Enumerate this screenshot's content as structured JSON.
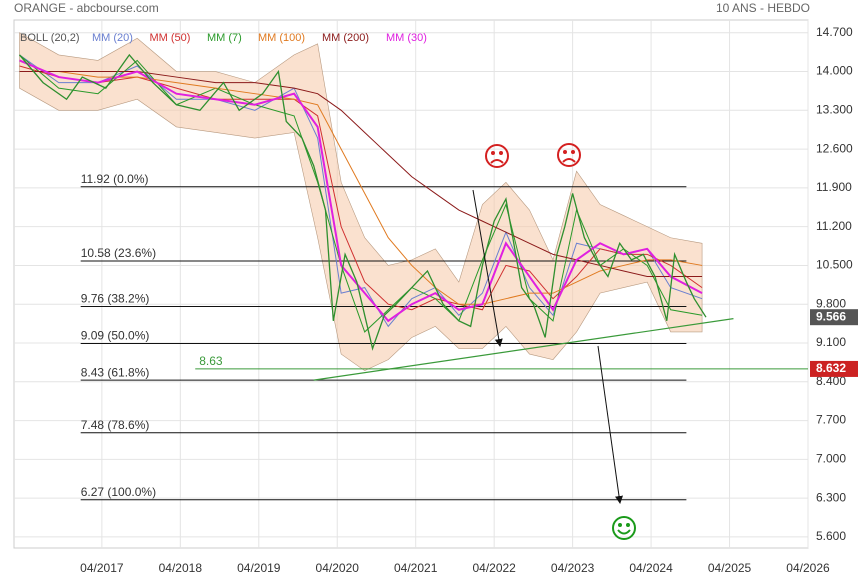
{
  "chart_data": {
    "type": "line",
    "header_left": "ORANGE - abcbourse.com",
    "header_right": "10 ANS - HEBDO",
    "xlim": [
      2016.13,
      2026.25
    ],
    "ylim": [
      5.4,
      14.93
    ],
    "xticks": [
      {
        "value": 2017.25,
        "label": "04/2017"
      },
      {
        "value": 2018.25,
        "label": "04/2018"
      },
      {
        "value": 2019.25,
        "label": "04/2019"
      },
      {
        "value": 2020.25,
        "label": "04/2020"
      },
      {
        "value": 2021.25,
        "label": "04/2021"
      },
      {
        "value": 2022.25,
        "label": "04/2022"
      },
      {
        "value": 2023.25,
        "label": "04/2023"
      },
      {
        "value": 2024.25,
        "label": "04/2024"
      },
      {
        "value": 2025.25,
        "label": "04/2025"
      },
      {
        "value": 2026.25,
        "label": "04/2026"
      }
    ],
    "yticks": [
      {
        "value": 14.7,
        "label": "14.700"
      },
      {
        "value": 14,
        "label": "14.000"
      },
      {
        "value": 13.3,
        "label": "13.300"
      },
      {
        "value": 12.6,
        "label": "12.600"
      },
      {
        "value": 11.9,
        "label": "11.900"
      },
      {
        "value": 11.2,
        "label": "11.200"
      },
      {
        "value": 10.5,
        "label": "10.500"
      },
      {
        "value": 9.8,
        "label": "9.800"
      },
      {
        "value": 9.1,
        "label": "9.100"
      },
      {
        "value": 8.4,
        "label": "8.400"
      },
      {
        "value": 7.7,
        "label": "7.700"
      },
      {
        "value": 7,
        "label": "7.000"
      },
      {
        "value": 6.3,
        "label": "6.300"
      },
      {
        "value": 5.6,
        "label": "5.600"
      }
    ],
    "grid": true,
    "price": {
      "color": "#2f8f2f",
      "x": [
        2016.2,
        2016.5,
        2016.8,
        2017.0,
        2017.3,
        2017.6,
        2017.9,
        2018.2,
        2018.5,
        2018.8,
        2019.0,
        2019.3,
        2019.5,
        2019.6,
        2019.8,
        2019.95,
        2020.1,
        2020.2,
        2020.35,
        2020.5,
        2020.7,
        2020.85,
        2021.0,
        2021.2,
        2021.4,
        2021.6,
        2021.8,
        2021.95,
        2022.1,
        2022.25,
        2022.4,
        2022.6,
        2022.75,
        2022.9,
        2023.05,
        2023.15,
        2023.25,
        2023.4,
        2023.55,
        2023.7,
        2023.85,
        2024.0,
        2024.15,
        2024.3,
        2024.45,
        2024.55,
        2024.7,
        2024.8,
        2024.95
      ],
      "values": [
        14.3,
        13.8,
        13.5,
        13.9,
        13.7,
        14.3,
        13.8,
        13.4,
        13.3,
        13.8,
        13.3,
        13.6,
        14.0,
        13.1,
        12.8,
        12.3,
        11.5,
        9.5,
        10.7,
        10.2,
        9.0,
        9.6,
        9.8,
        10.1,
        10.4,
        9.8,
        9.5,
        9.4,
        10.5,
        11.3,
        11.7,
        10.1,
        9.8,
        9.2,
        10.7,
        11.2,
        11.8,
        11.0,
        10.6,
        10.3,
        10.9,
        10.6,
        10.7,
        10.3,
        9.5,
        10.7,
        10.2,
        9.9,
        9.566
      ]
    },
    "ma_x": [
      2016.2,
      2016.7,
      2017.2,
      2017.7,
      2018.2,
      2018.7,
      2019.2,
      2019.7,
      2020.0,
      2020.3,
      2020.6,
      2020.9,
      2021.2,
      2021.5,
      2021.8,
      2022.1,
      2022.4,
      2022.7,
      2023.0,
      2023.3,
      2023.6,
      2023.9,
      2024.2,
      2024.5,
      2024.9
    ],
    "band": {
      "name": "BOLL (20,2)",
      "color": "#f5c9a8",
      "upper": [
        14.7,
        14.3,
        14.2,
        14.6,
        14.0,
        14.0,
        13.8,
        14.3,
        14.5,
        12.0,
        11.0,
        10.5,
        10.6,
        10.8,
        10.2,
        11.6,
        12.0,
        11.5,
        10.6,
        12.2,
        11.6,
        11.4,
        11.2,
        11.0,
        10.9
      ],
      "lower": [
        13.7,
        13.3,
        13.3,
        13.5,
        13.0,
        12.9,
        12.8,
        12.9,
        11.0,
        8.9,
        8.6,
        8.8,
        9.2,
        9.4,
        9.0,
        9.0,
        9.4,
        8.9,
        8.8,
        9.3,
        10.0,
        10.1,
        10.2,
        9.3,
        9.3
      ]
    },
    "series": [
      {
        "name": "MM (20)",
        "color": "#6a7fd0",
        "values": [
          14.3,
          13.8,
          13.8,
          14.1,
          13.5,
          13.5,
          13.3,
          13.7,
          12.8,
          10.0,
          10.1,
          9.4,
          9.9,
          10.1,
          9.6,
          10.0,
          11.1,
          10.1,
          9.6,
          10.9,
          10.8,
          10.7,
          10.8,
          10.1,
          9.9
        ]
      },
      {
        "name": "MM (50)",
        "color": "#d03030",
        "values": [
          14.1,
          13.9,
          13.8,
          13.9,
          13.7,
          13.5,
          13.5,
          13.5,
          13.2,
          11.2,
          10.2,
          9.8,
          9.7,
          9.9,
          9.8,
          9.7,
          10.5,
          10.4,
          9.9,
          10.3,
          10.8,
          10.7,
          10.7,
          10.5,
          10.1
        ]
      },
      {
        "name": "MM (7)",
        "color": "#2a9a2a",
        "values": [
          14.3,
          13.7,
          13.6,
          14.2,
          13.4,
          13.7,
          13.4,
          13.2,
          12.0,
          10.5,
          9.3,
          9.7,
          10.1,
          9.9,
          9.5,
          10.6,
          11.6,
          9.9,
          9.5,
          11.5,
          10.5,
          10.8,
          10.5,
          9.7,
          9.6
        ]
      },
      {
        "name": "MM (100)",
        "color": "#e07a20",
        "values": [
          14.0,
          14.0,
          13.9,
          13.9,
          13.8,
          13.7,
          13.6,
          13.5,
          13.4,
          12.6,
          11.8,
          11.0,
          10.5,
          10.1,
          9.8,
          9.8,
          9.9,
          10.0,
          10.0,
          10.2,
          10.4,
          10.5,
          10.6,
          10.6,
          10.5
        ]
      },
      {
        "name": "MM (200)",
        "color": "#8b1a1a",
        "values": [
          14.0,
          14.0,
          14.0,
          14.0,
          13.9,
          13.8,
          13.8,
          13.7,
          13.6,
          13.3,
          12.9,
          12.5,
          12.1,
          11.8,
          11.5,
          11.3,
          11.1,
          10.9,
          10.7,
          10.6,
          10.5,
          10.4,
          10.3,
          10.3,
          10.3
        ]
      },
      {
        "name": "MM (30)",
        "color": "#e020e0",
        "values": [
          14.2,
          13.9,
          13.8,
          14.0,
          13.6,
          13.5,
          13.4,
          13.6,
          13.0,
          10.5,
          10.0,
          9.5,
          9.8,
          10.0,
          9.7,
          9.8,
          10.9,
          10.3,
          9.7,
          10.6,
          10.9,
          10.7,
          10.8,
          10.3,
          10.0
        ]
      }
    ],
    "fib_x": [
      2016.98,
      2024.7
    ],
    "fib_levels": [
      {
        "value": 11.92,
        "label": "11.92  (0.0%)"
      },
      {
        "value": 10.58,
        "label": "10.58  (23.6%)"
      },
      {
        "value": 9.76,
        "label": "9.76  (38.2%)"
      },
      {
        "value": 9.09,
        "label": "9.09  (50.0%)"
      },
      {
        "value": 8.43,
        "label": "8.43  (61.8%)"
      },
      {
        "value": 7.48,
        "label": "7.48  (78.6%)"
      },
      {
        "value": 6.27,
        "label": "6.27  (100.0%)"
      }
    ],
    "trendline": {
      "color": "#3a9a3a",
      "x": [
        2019.95,
        2025.3
      ],
      "values": [
        8.43,
        9.54
      ]
    },
    "support": {
      "color": "#3a9a3a",
      "x_start": 2018.44,
      "value": 8.632,
      "label": "8.63",
      "tag": "8.632",
      "tag_color": "#cc2222"
    },
    "last_price": {
      "value": 9.566,
      "label": "9.566",
      "color": "#555555"
    }
  }
}
